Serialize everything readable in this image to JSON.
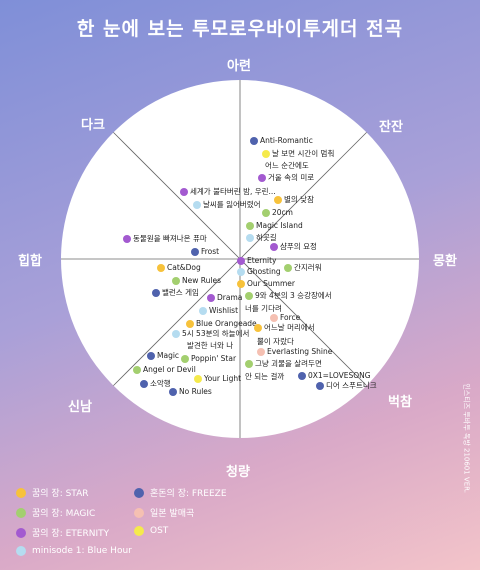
{
  "title": "한 눈에 보는 투모로우바이투게더 전곡",
  "credit": "인스티즈 투바투 독방 210601 VER.",
  "axes": {
    "top": "아련",
    "top_right": "잔잔",
    "right": "몽환",
    "bottom_right": "벅참",
    "bottom": "청량",
    "bottom_left": "신남",
    "left": "힙합",
    "top_left": "다크"
  },
  "categories": {
    "star": {
      "label": "꿈의 장: STAR",
      "color": "#f7c23b"
    },
    "magic": {
      "label": "꿈의 장: MAGIC",
      "color": "#a3cf6f"
    },
    "eternity": {
      "label": "꿈의 장: ETERNITY",
      "color": "#a35ad0"
    },
    "bluehour": {
      "label": "minisode 1: Blue Hour",
      "color": "#b5dcf0"
    },
    "freeze": {
      "label": "혼돈의 장: FREEZE",
      "color": "#4f62ad"
    },
    "japan": {
      "label": "일본 발매곡",
      "color": "#f5c0b2"
    },
    "ost": {
      "label": "OST",
      "color": "#f5ea4c"
    }
  },
  "songs": [
    {
      "name": "Anti-Romantic",
      "cat": "freeze"
    },
    {
      "name": "날 보면 시간이 멈춰",
      "cat": "ost"
    },
    {
      "name": "어느 순간에도",
      "cat": "none"
    },
    {
      "name": "거울 속의 미로",
      "cat": "eternity"
    },
    {
      "name": "세계가 불타버린 밤, 우린...",
      "cat": "eternity"
    },
    {
      "name": "별의 낮잠",
      "cat": "star"
    },
    {
      "name": "날씨를 잃어버렸어",
      "cat": "bluehour"
    },
    {
      "name": "20cm",
      "cat": "magic"
    },
    {
      "name": "Magic Island",
      "cat": "magic"
    },
    {
      "name": "하굣길",
      "cat": "bluehour"
    },
    {
      "name": "동물원을 빠져나온 퓨마",
      "cat": "eternity"
    },
    {
      "name": "샴푸의 요정",
      "cat": "eternity"
    },
    {
      "name": "Frost",
      "cat": "freeze"
    },
    {
      "name": "Eternity",
      "cat": "eternity"
    },
    {
      "name": "Cat&Dog",
      "cat": "star"
    },
    {
      "name": "Ghosting",
      "cat": "bluehour"
    },
    {
      "name": "간지러워",
      "cat": "magic"
    },
    {
      "name": "New Rules",
      "cat": "magic"
    },
    {
      "name": "Our Summer",
      "cat": "star"
    },
    {
      "name": "밸런스 게임",
      "cat": "freeze"
    },
    {
      "name": "9와 4분의 3 승강장에서",
      "cat": "magic"
    },
    {
      "name": "Drama",
      "cat": "eternity"
    },
    {
      "name": "너를 기다려",
      "cat": "none"
    },
    {
      "name": "Wishlist",
      "cat": "bluehour"
    },
    {
      "name": "Force",
      "cat": "japan"
    },
    {
      "name": "Blue Orangeade",
      "cat": "star"
    },
    {
      "name": "어느날 머리에서",
      "cat": "star"
    },
    {
      "name": "5시 53분의 하늘에서",
      "cat": "bluehour"
    },
    {
      "name": "발견한 너와 나",
      "cat": "none"
    },
    {
      "name": "뿔이 자랐다",
      "cat": "none"
    },
    {
      "name": "Everlasting Shine",
      "cat": "japan"
    },
    {
      "name": "Magic",
      "cat": "freeze"
    },
    {
      "name": "Poppin' Star",
      "cat": "magic"
    },
    {
      "name": "그냥 괴물을 살려두면",
      "cat": "magic"
    },
    {
      "name": "Angel or Devil",
      "cat": "magic"
    },
    {
      "name": "안 되는 걸까",
      "cat": "none"
    },
    {
      "name": "0X1=LOVESONG",
      "cat": "freeze"
    },
    {
      "name": "Your Light",
      "cat": "ost"
    },
    {
      "name": "소악행",
      "cat": "freeze"
    },
    {
      "name": "디어 스푸트니크",
      "cat": "freeze"
    },
    {
      "name": "No Rules",
      "cat": "freeze"
    }
  ]
}
